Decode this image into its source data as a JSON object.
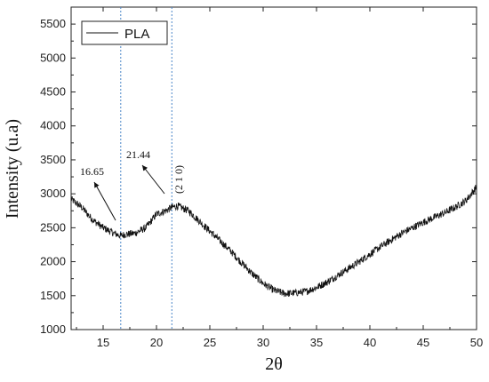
{
  "chart_data": {
    "type": "line",
    "title": "",
    "xlabel": "2θ",
    "ylabel": "Intensity (u.a)",
    "xlim": [
      12,
      50
    ],
    "ylim": [
      1000,
      5750
    ],
    "xticks": [
      15,
      20,
      25,
      30,
      35,
      40,
      45,
      50
    ],
    "yticks": [
      1000,
      1500,
      2000,
      2500,
      3000,
      3500,
      4000,
      4500,
      5000,
      5500
    ],
    "grid": false,
    "legend": {
      "position": "top-left",
      "entries": [
        "PLA"
      ]
    },
    "series": [
      {
        "name": "PLA",
        "color": "#111111",
        "x": [
          12,
          13,
          14,
          15,
          16,
          16.65,
          17,
          18,
          19,
          20,
          21,
          21.44,
          22,
          23,
          24,
          25,
          26,
          27,
          28,
          29,
          30,
          31,
          32,
          33,
          34,
          35,
          36,
          37,
          38,
          39,
          40,
          41,
          42,
          43,
          44,
          45,
          46,
          47,
          48,
          49,
          50
        ],
        "y": [
          2920,
          2800,
          2620,
          2500,
          2420,
          2380,
          2400,
          2420,
          2500,
          2700,
          2760,
          2800,
          2820,
          2750,
          2600,
          2450,
          2300,
          2150,
          1980,
          1820,
          1680,
          1580,
          1530,
          1540,
          1560,
          1620,
          1700,
          1800,
          1900,
          2000,
          2110,
          2220,
          2320,
          2420,
          2500,
          2580,
          2650,
          2720,
          2800,
          2900,
          3100
        ]
      }
    ],
    "annotations": [
      {
        "text": "16.65",
        "x": 16.65,
        "y": 2380
      },
      {
        "text": "21.44",
        "x": 21.44,
        "y": 2800
      },
      {
        "text": "(2 1 0)",
        "x": 21.44,
        "y": 2800
      }
    ],
    "reference_lines": [
      {
        "x": 16.65,
        "color": "#4a86c8",
        "style": "dotted"
      },
      {
        "x": 21.44,
        "color": "#4a86c8",
        "style": "dotted"
      }
    ]
  }
}
